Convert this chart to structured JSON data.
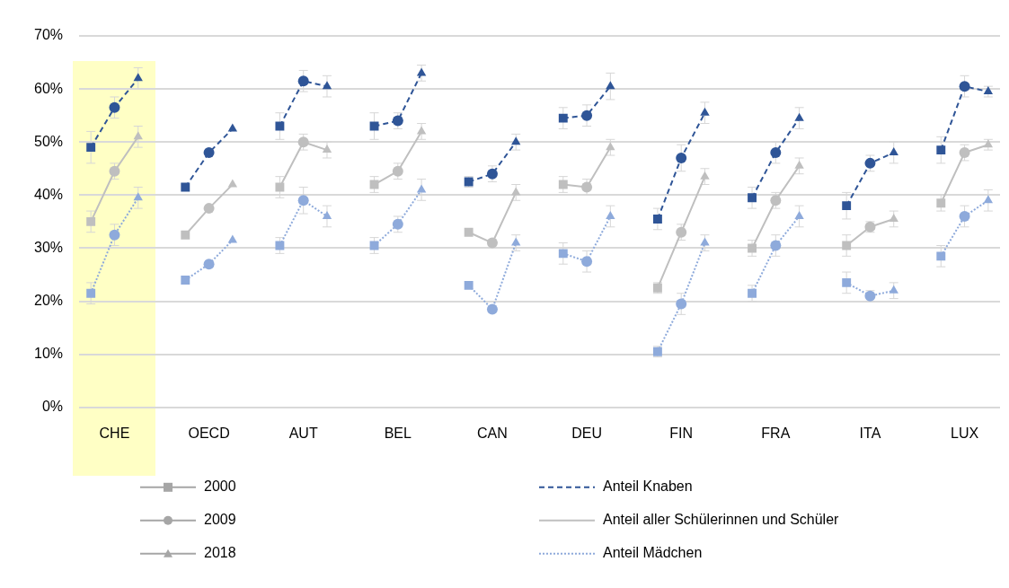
{
  "chart_data": {
    "type": "line",
    "categories": [
      null,
      "CHE",
      null,
      null,
      null,
      "OECD",
      null,
      null,
      null,
      "AUT",
      null,
      null,
      null,
      "BEL",
      null,
      null,
      null,
      "CAN",
      null,
      null,
      null,
      "DEU",
      null,
      null,
      null,
      "FIN",
      null,
      null,
      null,
      "FRA",
      null,
      null,
      null,
      "ITA",
      null,
      null,
      null,
      "LUX",
      null
    ],
    "marker": [
      "square",
      "circle",
      "triangle",
      null,
      "square",
      "circle",
      "triangle",
      null,
      "square",
      "circle",
      "triangle",
      null,
      "square",
      "circle",
      "triangle",
      null,
      "square",
      "circle",
      "triangle",
      null,
      "square",
      "circle",
      "triangle",
      null,
      "square",
      "circle",
      "triangle",
      null,
      "square",
      "circle",
      "triangle",
      null,
      "square",
      "circle",
      "triangle",
      null,
      "square",
      "circle",
      "triangle"
    ],
    "ylim": [
      0,
      70
    ],
    "yticks": [
      {
        "value": 0,
        "label": "0%"
      },
      {
        "value": 10,
        "label": "10%"
      },
      {
        "value": 20,
        "label": "20%"
      },
      {
        "value": 30,
        "label": "30%"
      },
      {
        "value": 40,
        "label": "40%"
      },
      {
        "value": 50,
        "label": "50%"
      },
      {
        "value": 60,
        "label": "60%"
      },
      {
        "value": 70,
        "label": "70%"
      }
    ],
    "grid": "y",
    "legend": "bottom",
    "series": [
      {
        "name": "2000",
        "color": "#a6a6a6",
        "marker": "square",
        "values": [
          null,
          null,
          null,
          null,
          null,
          null,
          null,
          null,
          null,
          null,
          null,
          null,
          null,
          null,
          null,
          null,
          null,
          null,
          null,
          null,
          null,
          null,
          null,
          null,
          null,
          null,
          null,
          null,
          null,
          null,
          null,
          null,
          null,
          null,
          null,
          null,
          null,
          null,
          null
        ]
      },
      {
        "name": "2009",
        "color": "#a6a6a6",
        "marker": "circle",
        "values": [
          null,
          null,
          null,
          null,
          null,
          null,
          null,
          null,
          null,
          null,
          null,
          null,
          null,
          null,
          null,
          null,
          null,
          null,
          null,
          null,
          null,
          null,
          null,
          null,
          null,
          null,
          null,
          null,
          null,
          null,
          null,
          null,
          null,
          null,
          null,
          null,
          null,
          null,
          null
        ]
      },
      {
        "name": "2018",
        "color": "#a6a6a6",
        "marker": "triangle",
        "values": [
          null,
          null,
          null,
          null,
          null,
          null,
          null,
          null,
          null,
          null,
          null,
          null,
          null,
          null,
          null,
          null,
          null,
          null,
          null,
          null,
          null,
          null,
          null,
          null,
          null,
          null,
          null,
          null,
          null,
          null,
          null,
          null,
          null,
          null,
          null,
          null,
          null,
          null,
          null
        ]
      },
      {
        "name": "Anteil Knaben",
        "color": "#2f5597",
        "line_style": "dashed",
        "values": [
          49,
          56.5,
          62,
          null,
          41.5,
          48,
          52.5,
          null,
          53,
          61.5,
          60.5,
          null,
          53,
          54,
          63,
          null,
          42.5,
          44,
          50,
          null,
          54.5,
          55,
          60.5,
          null,
          35.5,
          47,
          55.5,
          null,
          39.5,
          48,
          54.5,
          null,
          38,
          46,
          48,
          null,
          48.5,
          60.5,
          59.5
        ],
        "errors": [
          3,
          2,
          2,
          null,
          null,
          null,
          null,
          null,
          2.5,
          2,
          2,
          null,
          2.5,
          1.5,
          1.5,
          null,
          1,
          1.5,
          1.5,
          null,
          2,
          2,
          2.5,
          null,
          2,
          2.5,
          2,
          null,
          2,
          2,
          2,
          null,
          2.5,
          1.5,
          2,
          null,
          2.5,
          2,
          1
        ]
      },
      {
        "name": "Anteil aller Schülerinnen und Schüler",
        "color": "#bfbfbf",
        "line_style": "solid",
        "values": [
          35,
          44.5,
          51,
          null,
          32.5,
          37.5,
          42,
          null,
          41.5,
          50,
          48.5,
          null,
          42,
          44.5,
          52,
          null,
          33,
          31,
          40.5,
          null,
          42,
          41.5,
          49,
          null,
          22.5,
          33,
          43.5,
          null,
          30,
          39,
          45.5,
          null,
          30.5,
          34,
          35.5,
          null,
          38.5,
          48,
          49.5
        ],
        "errors": [
          2,
          1.5,
          2,
          null,
          null,
          null,
          null,
          null,
          2,
          1.5,
          1.5,
          null,
          1.5,
          1.5,
          1.5,
          null,
          null,
          null,
          1.5,
          null,
          1.5,
          1.5,
          1.5,
          null,
          1,
          1.5,
          1.5,
          null,
          1.5,
          1.5,
          1.5,
          null,
          2,
          1,
          1.5,
          null,
          1.5,
          1.5,
          1
        ]
      },
      {
        "name": "Anteil Mädchen",
        "color": "#8eaadb",
        "line_style": "dotted",
        "values": [
          21.5,
          32.5,
          39.5,
          null,
          24,
          27,
          31.5,
          null,
          30.5,
          39,
          36,
          null,
          30.5,
          34.5,
          41,
          null,
          23,
          18.5,
          31,
          null,
          29,
          27.5,
          36,
          null,
          10.5,
          19.5,
          31,
          null,
          21.5,
          30.5,
          36,
          null,
          23.5,
          21,
          22,
          null,
          28.5,
          36,
          39
        ],
        "errors": [
          2,
          2,
          2,
          null,
          null,
          null,
          null,
          null,
          1.5,
          2.5,
          2,
          null,
          1.5,
          1.5,
          2,
          null,
          null,
          null,
          1.5,
          null,
          2,
          2,
          2,
          null,
          1,
          2,
          1.5,
          null,
          1.5,
          2,
          2,
          null,
          2,
          1,
          1.5,
          null,
          2,
          2,
          2
        ]
      }
    ]
  }
}
